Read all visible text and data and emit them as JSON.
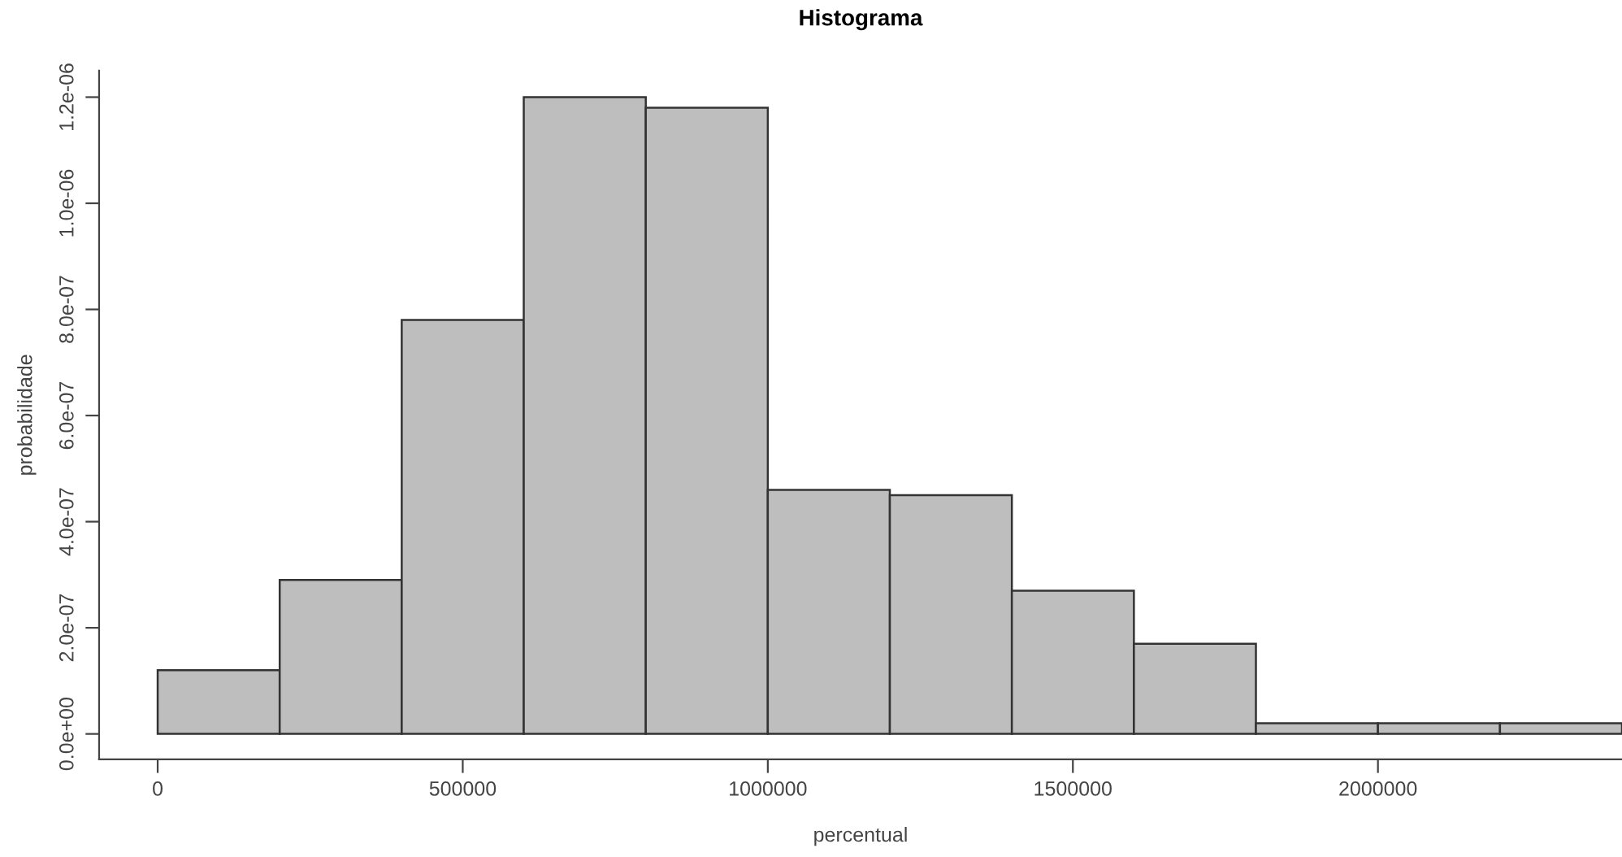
{
  "chart_data": {
    "type": "histogram",
    "title": "Histograma",
    "xlabel": "percentual",
    "ylabel": "probabilidade",
    "bins": [
      0,
      200000,
      400000,
      600000,
      800000,
      1000000,
      1200000,
      1400000,
      1600000,
      1800000,
      2000000,
      2200000,
      2400000
    ],
    "values": [
      1.2e-07,
      2.9e-07,
      7.8e-07,
      1.2e-06,
      1.18e-06,
      4.6e-07,
      4.5e-07,
      2.7e-07,
      1.7e-07,
      2e-08,
      2e-08,
      2e-08
    ],
    "color": "#bebebe",
    "xlim": [
      -96000,
      2400000
    ],
    "ylim": [
      -4.8e-08,
      1.25e-06
    ],
    "xticks": [
      0,
      500000,
      1000000,
      1500000,
      2000000
    ],
    "yticks": [
      {
        "value": 0,
        "label": "0.0e+00"
      },
      {
        "value": 2e-07,
        "label": "2.0e-07"
      },
      {
        "value": 4e-07,
        "label": "4.0e-07"
      },
      {
        "value": 6e-07,
        "label": "6.0e-07"
      },
      {
        "value": 8e-07,
        "label": "8.0e-07"
      },
      {
        "value": 1e-06,
        "label": "1.0e-06"
      },
      {
        "value": 1.2e-06,
        "label": "1.2e-06"
      }
    ],
    "grid": false
  }
}
